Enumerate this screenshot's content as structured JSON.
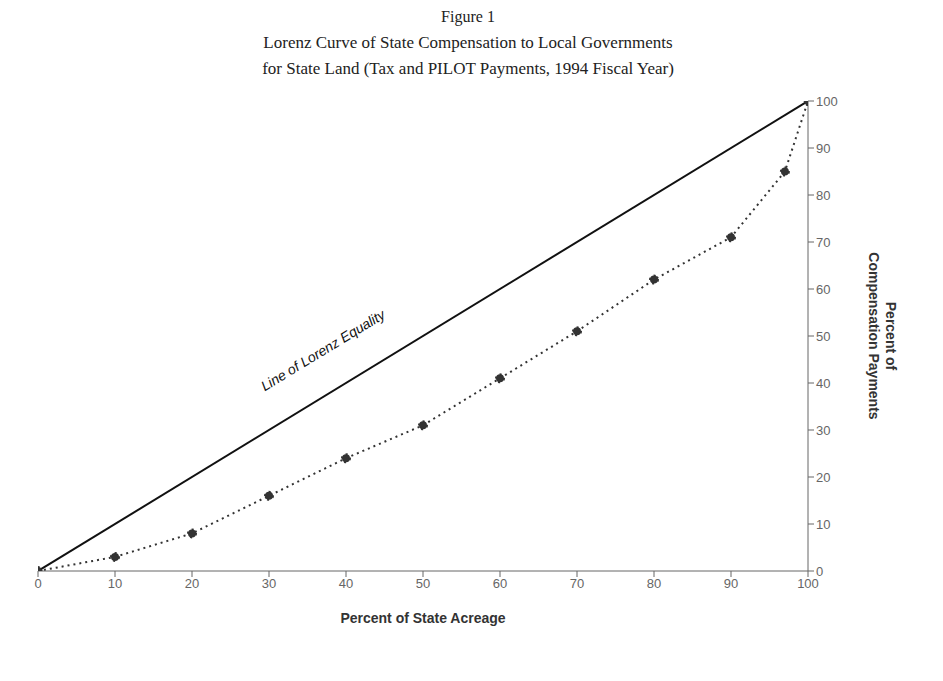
{
  "chart_data": {
    "type": "line",
    "title": "Lorenz Curve of State Compensation to Local Governments",
    "subtitle": "for State Land  (Tax and PILOT Payments, 1994 Fiscal Year)",
    "xlabel": "Percent of State Acreage",
    "ylabel": "Percent of\nCompensation Payments",
    "annotations": [
      {
        "text": "Figure 1"
      },
      {
        "text": "Line of Lorenz Equality",
        "x": 37,
        "y": 47
      }
    ],
    "series": [
      {
        "x": [
          0,
          100
        ],
        "values": [
          0,
          100
        ],
        "color": "#111111",
        "line_style": "solid"
      },
      {
        "x": [
          0,
          10,
          20,
          30,
          40,
          50,
          60,
          70,
          80,
          90,
          97,
          100
        ],
        "values": [
          0,
          3,
          8,
          16,
          24,
          31,
          41,
          51,
          62,
          71,
          85,
          100
        ],
        "color": "#333333",
        "line_style": "dotted",
        "marker": "circle"
      }
    ],
    "xlim": [
      0,
      100
    ],
    "ylim": [
      0,
      100
    ],
    "xticks": [
      0,
      10,
      20,
      30,
      40,
      50,
      60,
      70,
      80,
      90,
      100
    ],
    "yticks": [
      0,
      10,
      20,
      30,
      40,
      50,
      60,
      70,
      80,
      90,
      100
    ],
    "grid": false
  }
}
